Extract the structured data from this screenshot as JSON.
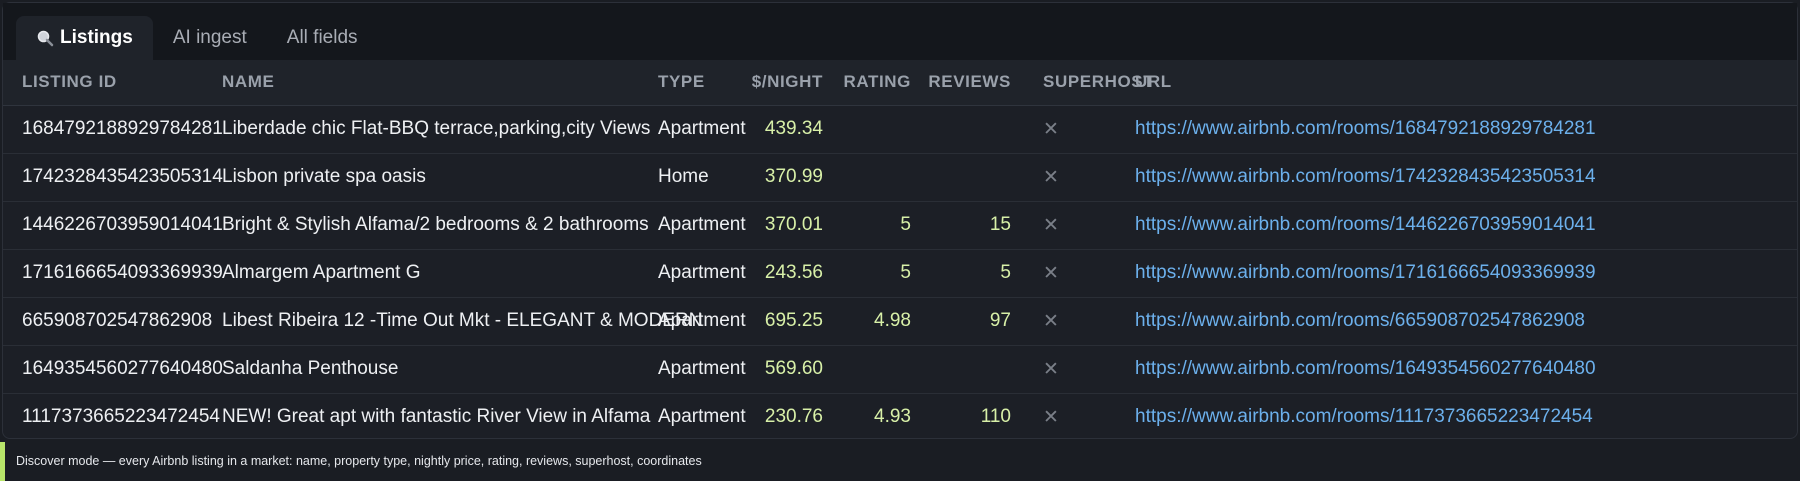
{
  "tabs": [
    {
      "label": "Listings",
      "icon": "search-icon",
      "active": true
    },
    {
      "label": "AI ingest",
      "active": false
    },
    {
      "label": "All fields",
      "active": false
    }
  ],
  "table": {
    "headers": {
      "listing_id": "LISTING ID",
      "name": "NAME",
      "type": "TYPE",
      "price": "$/NIGHT",
      "rating": "RATING",
      "reviews": "REVIEWS",
      "superhost": "SUPERHOST",
      "url": "URL"
    },
    "rows": [
      {
        "listing_id": "1684792188929784281",
        "name": "Liberdade chic Flat-BBQ terrace,parking,city Views",
        "type": "Apartment",
        "price": "439.34",
        "rating": "",
        "reviews": "",
        "superhost": "✕",
        "url": "https://www.airbnb.com/rooms/1684792188929784281"
      },
      {
        "listing_id": "1742328435423505314",
        "name": "Lisbon private spa oasis",
        "type": "Home",
        "price": "370.99",
        "rating": "",
        "reviews": "",
        "superhost": "✕",
        "url": "https://www.airbnb.com/rooms/1742328435423505314"
      },
      {
        "listing_id": "1446226703959014041",
        "name": "Bright & Stylish Alfama/2 bedrooms & 2 bathrooms",
        "type": "Apartment",
        "price": "370.01",
        "rating": "5",
        "reviews": "15",
        "superhost": "✕",
        "url": "https://www.airbnb.com/rooms/1446226703959014041"
      },
      {
        "listing_id": "1716166654093369939",
        "name": "Almargem Apartment G",
        "type": "Apartment",
        "price": "243.56",
        "rating": "5",
        "reviews": "5",
        "superhost": "✕",
        "url": "https://www.airbnb.com/rooms/1716166654093369939"
      },
      {
        "listing_id": "665908702547862908",
        "name": "Libest Ribeira 12 -Time Out Mkt - ELEGANT & MODERN",
        "type": "Apartment",
        "price": "695.25",
        "rating": "4.98",
        "reviews": "97",
        "superhost": "✕",
        "url": "https://www.airbnb.com/rooms/665908702547862908"
      },
      {
        "listing_id": "1649354560277640480",
        "name": "Saldanha Penthouse",
        "type": "Apartment",
        "price": "569.60",
        "rating": "",
        "reviews": "",
        "superhost": "✕",
        "url": "https://www.airbnb.com/rooms/1649354560277640480"
      },
      {
        "listing_id": "1117373665223472454",
        "name": "NEW! Great apt with fantastic River View in Alfama",
        "type": "Apartment",
        "price": "230.76",
        "rating": "4.93",
        "reviews": "110",
        "superhost": "✕",
        "url": "https://www.airbnb.com/rooms/1117373665223472454"
      }
    ]
  },
  "footer": {
    "text": "Discover mode — every Airbnb listing in a market: name, property type, nightly price, rating, reviews, superhost, coordinates"
  },
  "colors": {
    "accent": "#b8e56a",
    "number": "#d8f0a8",
    "link": "#6cb0ec"
  }
}
